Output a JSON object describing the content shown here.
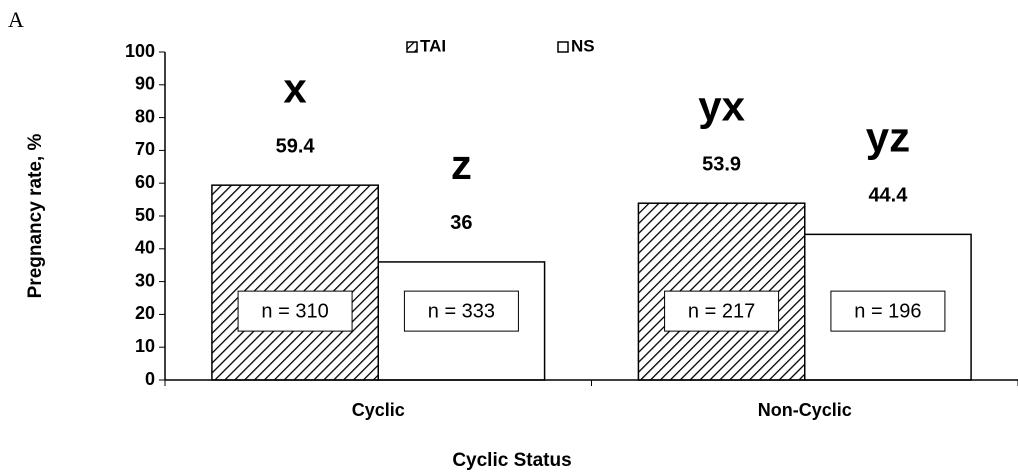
{
  "chart_data": {
    "type": "bar",
    "panel_label": "A",
    "x_label": "Cyclic Status",
    "y_label": "Pregnancy rate, %",
    "categories": [
      "Cyclic",
      "Non-Cyclic"
    ],
    "series": [
      {
        "name": "TAI",
        "color": "#000000",
        "pattern": "hatch",
        "values": [
          59.4,
          53.9
        ],
        "significance_letters": [
          "x",
          "yx"
        ],
        "sample_sizes": [
          "n = 310",
          "n = 217"
        ]
      },
      {
        "name": "NS",
        "color": "#ffffff",
        "pattern": "solid",
        "values": [
          36,
          44.4
        ],
        "significance_letters": [
          "z",
          "yz"
        ],
        "sample_sizes": [
          "n = 333",
          "n = 196"
        ]
      }
    ],
    "ylim": [
      0,
      100
    ],
    "yticks": [
      0,
      10,
      20,
      30,
      40,
      50,
      60,
      70,
      80,
      90,
      100
    ],
    "legend": "top"
  }
}
